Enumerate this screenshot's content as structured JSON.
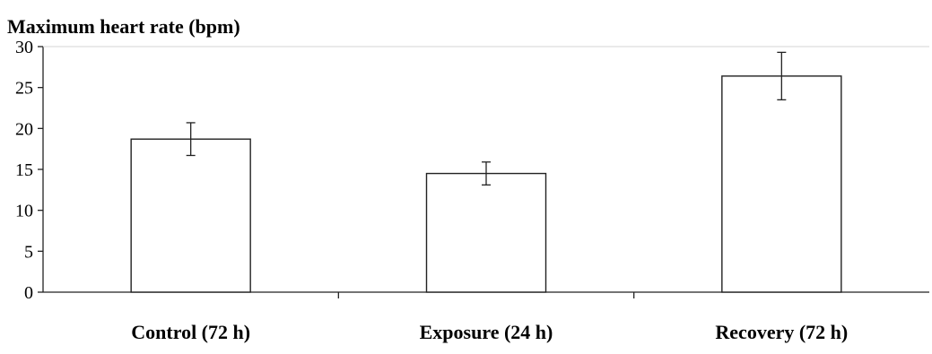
{
  "chart_data": {
    "type": "bar",
    "title": "Maximum heart rate (bpm)",
    "xlabel": "",
    "ylabel": "",
    "categories": [
      "Control (72 h)",
      "Exposure (24 h)",
      "Recovery (72 h)"
    ],
    "values": [
      18.7,
      14.5,
      26.4
    ],
    "errors": [
      2.0,
      1.4,
      2.9
    ],
    "ylim": [
      0,
      30
    ],
    "yticks": [
      0,
      5,
      10,
      15,
      20,
      25,
      30
    ],
    "ytick_labels": [
      "0",
      "5",
      "10",
      "15",
      "20",
      "25",
      "30"
    ],
    "grid": false,
    "legend": "none",
    "colors": {
      "bar_fill": "#ffffff",
      "bar_stroke": "#222222",
      "axis": "#222222"
    }
  }
}
